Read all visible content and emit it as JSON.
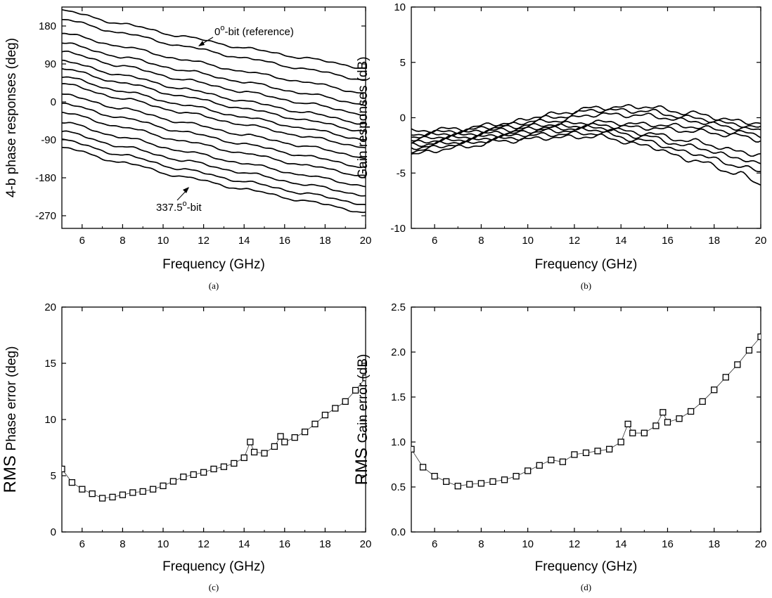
{
  "chart_data": [
    {
      "id": "a",
      "type": "line",
      "caption": "(a)",
      "xlabel": "Frequency (GHz)",
      "ylabel": "4-b phase responses (deg)",
      "xlim": [
        5,
        20
      ],
      "ylim": [
        -300,
        225
      ],
      "xticks": [
        6,
        8,
        10,
        12,
        14,
        16,
        18,
        20
      ],
      "yticks": [
        180,
        90,
        0,
        -90,
        -180,
        -270
      ],
      "ytick_labels": [
        "180",
        "90",
        "0",
        "-90",
        "-180",
        "-270"
      ],
      "annotations": {
        "top_prefix": "0",
        "top_sup": "o",
        "top_suffix": "-bit (reference)",
        "bottom_prefix": "337.5",
        "bottom_sup": "o",
        "bottom_suffix": "-bit"
      },
      "series": [
        {
          "x": [
            5,
            8,
            11,
            14,
            17,
            20
          ],
          "y": [
            217,
            185,
            155,
            128,
            104,
            80
          ]
        },
        {
          "x": [
            5,
            8,
            11,
            14,
            17,
            20
          ],
          "y": [
            196,
            163,
            132,
            104,
            78,
            52
          ]
        },
        {
          "x": [
            5,
            8,
            11,
            14,
            17,
            20
          ],
          "y": [
            163,
            131,
            100,
            72,
            47,
            20
          ]
        },
        {
          "x": [
            5,
            8,
            11,
            14,
            17,
            20
          ],
          "y": [
            140,
            106,
            75,
            47,
            20,
            -7
          ]
        },
        {
          "x": [
            5,
            8,
            11,
            14,
            17,
            20
          ],
          "y": [
            119,
            85,
            53,
            24,
            -3,
            -30
          ]
        },
        {
          "x": [
            5,
            8,
            11,
            14,
            17,
            20
          ],
          "y": [
            97,
            63,
            31,
            2,
            -25,
            -52
          ]
        },
        {
          "x": [
            5,
            8,
            11,
            14,
            17,
            20
          ],
          "y": [
            79,
            45,
            13,
            -16,
            -43,
            -70
          ]
        },
        {
          "x": [
            5,
            8,
            11,
            14,
            17,
            20
          ],
          "y": [
            60,
            25,
            -7,
            -36,
            -63,
            -90
          ]
        },
        {
          "x": [
            5,
            8,
            11,
            14,
            17,
            20
          ],
          "y": [
            43,
            8,
            -25,
            -54,
            -82,
            -108
          ]
        },
        {
          "x": [
            5,
            8,
            11,
            14,
            17,
            20
          ],
          "y": [
            18,
            -16,
            -49,
            -78,
            -105,
            -132
          ]
        },
        {
          "x": [
            5,
            8,
            11,
            14,
            17,
            20
          ],
          "y": [
            -4,
            -38,
            -71,
            -100,
            -128,
            -155
          ]
        },
        {
          "x": [
            5,
            8,
            11,
            14,
            17,
            20
          ],
          "y": [
            -25,
            -60,
            -93,
            -122,
            -150,
            -176
          ]
        },
        {
          "x": [
            5,
            8,
            11,
            14,
            17,
            20
          ],
          "y": [
            -48,
            -84,
            -117,
            -146,
            -174,
            -200
          ]
        },
        {
          "x": [
            5,
            8,
            11,
            14,
            17,
            20
          ],
          "y": [
            -70,
            -106,
            -139,
            -168,
            -196,
            -222
          ]
        },
        {
          "x": [
            5,
            8,
            11,
            14,
            17,
            20
          ],
          "y": [
            -90,
            -126,
            -160,
            -189,
            -217,
            -243
          ]
        },
        {
          "x": [
            5,
            8,
            11,
            14,
            17,
            20
          ],
          "y": [
            -108,
            -144,
            -178,
            -207,
            -235,
            -262
          ]
        }
      ]
    },
    {
      "id": "b",
      "type": "line",
      "caption": "(b)",
      "xlabel": "Frequency (GHz)",
      "ylabel": "Gain responses (dB)",
      "xlim": [
        5,
        20
      ],
      "ylim": [
        -10,
        10
      ],
      "xticks": [
        6,
        8,
        10,
        12,
        14,
        16,
        18,
        20
      ],
      "yticks": [
        10,
        5,
        0,
        -5,
        -10
      ],
      "ytick_labels": [
        "10",
        "5",
        "0",
        "-5",
        "-10"
      ],
      "series": [
        {
          "x": [
            5,
            7,
            9,
            11,
            13,
            15,
            17,
            19,
            20
          ],
          "y": [
            -1.2,
            -1.0,
            -0.5,
            0.3,
            0.9,
            1.0,
            0.4,
            -0.3,
            -0.5
          ]
        },
        {
          "x": [
            5,
            7,
            9,
            11,
            13,
            15,
            17,
            19,
            20
          ],
          "y": [
            -1.5,
            -1.2,
            -0.7,
            0.0,
            0.7,
            0.6,
            0.0,
            -0.6,
            -0.9
          ]
        },
        {
          "x": [
            5,
            7,
            9,
            11,
            13,
            15,
            17,
            19,
            20
          ],
          "y": [
            -1.7,
            -1.4,
            -0.9,
            -0.3,
            0.3,
            0.2,
            -0.3,
            -0.9,
            -1.2
          ]
        },
        {
          "x": [
            5,
            7,
            9,
            11,
            13,
            15,
            17,
            19,
            20
          ],
          "y": [
            -2.0,
            -1.6,
            -1.1,
            -0.6,
            -0.4,
            -0.6,
            -0.8,
            -1.3,
            -1.6
          ]
        },
        {
          "x": [
            5,
            7,
            9,
            11,
            13,
            15,
            17,
            19,
            20
          ],
          "y": [
            -2.3,
            -1.8,
            -1.3,
            -0.8,
            -0.7,
            -0.9,
            -1.2,
            -1.6,
            -2.0
          ]
        },
        {
          "x": [
            5,
            7,
            9,
            11,
            13,
            15,
            17,
            19,
            20
          ],
          "y": [
            -2.5,
            -2.0,
            -1.5,
            -1.0,
            -0.9,
            -1.4,
            -2.1,
            -3.0,
            -3.4
          ]
        },
        {
          "x": [
            5,
            7,
            9,
            11,
            13,
            15,
            17,
            19,
            20
          ],
          "y": [
            -2.7,
            -2.2,
            -1.7,
            -1.2,
            -1.1,
            -1.7,
            -2.6,
            -3.6,
            -4.2
          ]
        },
        {
          "x": [
            5,
            7,
            9,
            11,
            13,
            15,
            17,
            19,
            20
          ],
          "y": [
            -3.0,
            -2.4,
            -1.9,
            -1.5,
            -1.4,
            -2.1,
            -3.2,
            -4.3,
            -4.9
          ]
        },
        {
          "x": [
            5,
            7,
            9,
            11,
            13,
            15,
            17,
            19,
            20
          ],
          "y": [
            -3.3,
            -2.7,
            -2.1,
            -1.8,
            -1.7,
            -2.5,
            -3.8,
            -5.0,
            -6.0
          ]
        }
      ]
    },
    {
      "id": "c",
      "type": "scatter",
      "caption": "(c)",
      "xlabel": "Frequency (GHz)",
      "ylabel_prefix": "RMS",
      "ylabel": "Phase error (deg)",
      "xlim": [
        5,
        20
      ],
      "ylim": [
        0,
        20
      ],
      "xticks": [
        6,
        8,
        10,
        12,
        14,
        16,
        18,
        20
      ],
      "yticks": [
        0,
        5,
        10,
        15,
        20
      ],
      "ytick_labels": [
        "0",
        "5",
        "10",
        "15",
        "20"
      ],
      "x": [
        5.0,
        5.5,
        6.0,
        6.5,
        7.0,
        7.5,
        8.0,
        8.5,
        9.0,
        9.5,
        10.0,
        10.5,
        11.0,
        11.5,
        12.0,
        12.5,
        13.0,
        13.5,
        14.0,
        14.3,
        14.5,
        15.0,
        15.5,
        15.8,
        16.0,
        16.5,
        17.0,
        17.5,
        18.0,
        18.5,
        19.0,
        19.5,
        20.0
      ],
      "y": [
        5.6,
        4.4,
        3.8,
        3.4,
        3.0,
        3.1,
        3.3,
        3.5,
        3.6,
        3.8,
        4.1,
        4.5,
        4.9,
        5.1,
        5.3,
        5.6,
        5.8,
        6.1,
        6.6,
        8.0,
        7.1,
        7.0,
        7.6,
        8.5,
        8.0,
        8.4,
        8.9,
        9.6,
        10.4,
        11.0,
        11.6,
        12.6,
        13.7
      ]
    },
    {
      "id": "d",
      "type": "scatter",
      "caption": "(d)",
      "xlabel": "Frequency (GHz)",
      "ylabel_prefix": "RMS",
      "ylabel": "Gain error (dB)",
      "xlim": [
        5,
        20
      ],
      "ylim": [
        0,
        2.5
      ],
      "xticks": [
        6,
        8,
        10,
        12,
        14,
        16,
        18,
        20
      ],
      "yticks": [
        0,
        0.5,
        1.0,
        1.5,
        2.0,
        2.5
      ],
      "ytick_labels": [
        "0.0",
        "0.5",
        "1.0",
        "1.5",
        "2.0",
        "2.5"
      ],
      "x": [
        5.0,
        5.5,
        6.0,
        6.5,
        7.0,
        7.5,
        8.0,
        8.5,
        9.0,
        9.5,
        10.0,
        10.5,
        11.0,
        11.5,
        12.0,
        12.5,
        13.0,
        13.5,
        14.0,
        14.3,
        14.5,
        15.0,
        15.5,
        15.8,
        16.0,
        16.5,
        17.0,
        17.5,
        18.0,
        18.5,
        19.0,
        19.5,
        20.0
      ],
      "y": [
        0.92,
        0.72,
        0.62,
        0.56,
        0.51,
        0.53,
        0.54,
        0.56,
        0.58,
        0.62,
        0.68,
        0.74,
        0.8,
        0.78,
        0.86,
        0.88,
        0.9,
        0.92,
        1.0,
        1.2,
        1.1,
        1.1,
        1.18,
        1.33,
        1.22,
        1.26,
        1.34,
        1.45,
        1.58,
        1.72,
        1.86,
        2.02,
        2.17
      ]
    }
  ]
}
